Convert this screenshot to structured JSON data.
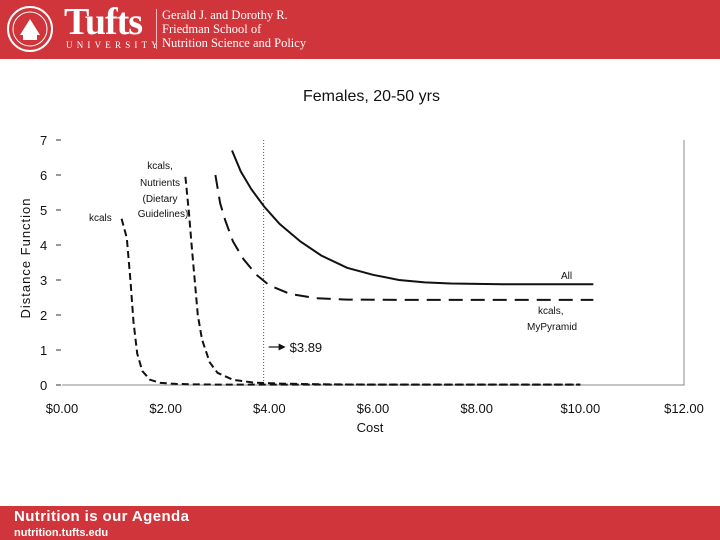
{
  "header": {
    "wordmark": "Tufts",
    "university": "UNIVERSITY",
    "school_lines": [
      "Gerald J. and Dorothy R.",
      "Friedman School of",
      "Nutrition Science and Policy"
    ],
    "bar_color": "#cf353a"
  },
  "footer": {
    "tagline": "Nutrition is our Agenda",
    "site": "nutrition.tufts.edu"
  },
  "chart_data": {
    "type": "line",
    "title": "Females, 20-50 yrs",
    "xlabel": "Cost",
    "ylabel": "Distance Function",
    "xlim": [
      0,
      12
    ],
    "ylim": [
      0,
      7
    ],
    "x_ticks": [
      "$0.00",
      "$2.00",
      "$4.00",
      "$6.00",
      "$8.00",
      "$10.00",
      "$12.00"
    ],
    "y_ticks": [
      "0",
      "1",
      "2",
      "3",
      "4",
      "5",
      "6",
      "7"
    ],
    "grid": false,
    "series": [
      {
        "name": "kcals",
        "style": "dashed",
        "points": [
          [
            1.15,
            4.75
          ],
          [
            1.25,
            4.2
          ],
          [
            1.32,
            3.0
          ],
          [
            1.38,
            1.8
          ],
          [
            1.45,
            0.9
          ],
          [
            1.55,
            0.4
          ],
          [
            1.7,
            0.15
          ],
          [
            1.9,
            0.06
          ],
          [
            2.2,
            0.03
          ],
          [
            2.5,
            0.02
          ],
          [
            3.0,
            0.01
          ],
          [
            4.0,
            0.01
          ],
          [
            6.0,
            0.01
          ],
          [
            10.0,
            0.01
          ]
        ]
      },
      {
        "name": "kcals, Nutrients (Dietary Guidelines)",
        "style": "dashed",
        "points": [
          [
            2.38,
            5.95
          ],
          [
            2.45,
            4.9
          ],
          [
            2.5,
            4.0
          ],
          [
            2.56,
            3.0
          ],
          [
            2.62,
            2.0
          ],
          [
            2.7,
            1.3
          ],
          [
            2.85,
            0.65
          ],
          [
            3.0,
            0.35
          ],
          [
            3.3,
            0.15
          ],
          [
            3.7,
            0.07
          ],
          [
            4.2,
            0.04
          ],
          [
            5.0,
            0.02
          ],
          [
            6.0,
            0.01
          ],
          [
            10.0,
            0.01
          ]
        ]
      },
      {
        "name": "kcals, MyPyramid",
        "style": "long-dashed",
        "points": [
          [
            2.96,
            6.0
          ],
          [
            3.05,
            5.2
          ],
          [
            3.15,
            4.7
          ],
          [
            3.3,
            4.1
          ],
          [
            3.5,
            3.6
          ],
          [
            3.75,
            3.15
          ],
          [
            4.0,
            2.85
          ],
          [
            4.4,
            2.6
          ],
          [
            4.9,
            2.48
          ],
          [
            5.5,
            2.44
          ],
          [
            6.5,
            2.43
          ],
          [
            10.25,
            2.43
          ]
        ]
      },
      {
        "name": "All",
        "style": "solid",
        "points": [
          [
            3.28,
            6.7
          ],
          [
            3.45,
            6.1
          ],
          [
            3.65,
            5.6
          ],
          [
            3.9,
            5.1
          ],
          [
            4.2,
            4.6
          ],
          [
            4.6,
            4.1
          ],
          [
            5.0,
            3.7
          ],
          [
            5.5,
            3.35
          ],
          [
            6.0,
            3.15
          ],
          [
            6.5,
            3.0
          ],
          [
            7.0,
            2.93
          ],
          [
            7.5,
            2.9
          ],
          [
            8.5,
            2.88
          ],
          [
            10.25,
            2.88
          ]
        ]
      }
    ],
    "reference_line": {
      "x": 3.89,
      "label": "$3.89"
    },
    "labels": [
      {
        "text": "kcals",
        "series": "kcals"
      },
      {
        "text": "kcals,",
        "series": "kcals, Nutrients (Dietary Guidelines)"
      },
      {
        "text": "Nutrients",
        "series": "kcals, Nutrients (Dietary Guidelines)"
      },
      {
        "text": "(Dietary",
        "series": "kcals, Nutrients (Dietary Guidelines)"
      },
      {
        "text": "Guidelines)",
        "series": "kcals, Nutrients (Dietary Guidelines)"
      },
      {
        "text": "All",
        "series": "All"
      },
      {
        "text": "kcals,",
        "series": "kcals, MyPyramid"
      },
      {
        "text": "MyPyramid",
        "series": "kcals, MyPyramid"
      }
    ]
  }
}
